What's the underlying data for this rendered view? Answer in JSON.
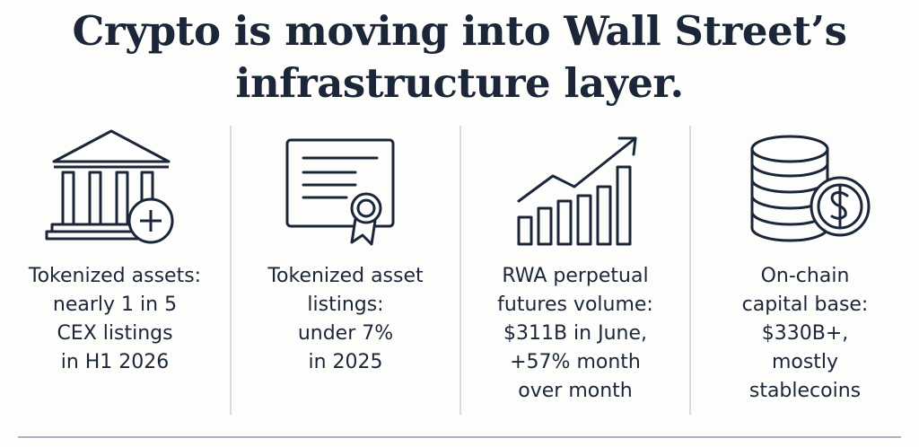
{
  "headline": {
    "line1": "Crypto is moving into Wall Street’s",
    "line2": "infrastructure layer."
  },
  "panels": [
    {
      "icon": "bank-plus-icon",
      "lines": [
        "Tokenized assets:",
        "nearly 1 in 5",
        "CEX listings",
        "in H1 2026"
      ]
    },
    {
      "icon": "certificate-icon",
      "lines": [
        "Tokenized asset",
        "listings:",
        "under 7%",
        "in 2025"
      ]
    },
    {
      "icon": "growth-chart-icon",
      "lines": [
        "RWA perpetual",
        "futures volume:",
        "$311B in June,",
        "+57% month",
        "over month"
      ]
    },
    {
      "icon": "coins-dollar-icon",
      "lines": [
        "On-chain",
        "capital base:",
        "$330B+,",
        "mostly",
        "stablecoins"
      ]
    }
  ]
}
